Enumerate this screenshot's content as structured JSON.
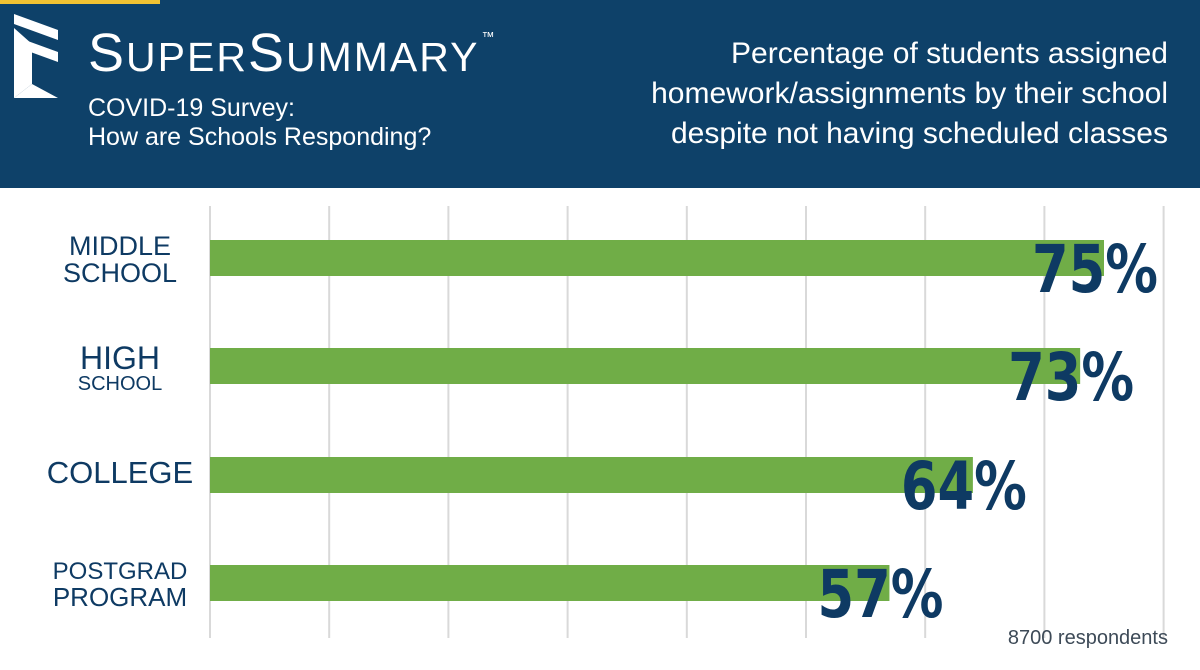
{
  "brand": {
    "name_first_letter": "S",
    "name_first_rest": "UPER",
    "name_second_letter": "S",
    "name_second_rest": "UMMARY",
    "trademark": "™",
    "subtitle_line1": "COVID-19 Survey:",
    "subtitle_line2": "How are Schools Responding?"
  },
  "colors": {
    "header_bg": "#0e4169",
    "bar": "#70ad47",
    "value_text": "#0e3a63",
    "label_text": "#0e3a63",
    "gridline": "#d9d9d9"
  },
  "icons": {
    "logo": "supersummary-chevron-logo-icon"
  },
  "chart_data": {
    "type": "bar",
    "orientation": "horizontal",
    "title": "Percentage of students assigned homework/assignments by their school despite not having scheduled classes",
    "title_lines": [
      "Percentage of students assigned",
      "homework/assignments by their school",
      "despite not having scheduled classes"
    ],
    "categories": [
      {
        "line1": "MIDDLE",
        "line2": "SCHOOL"
      },
      {
        "line1": "HIGH",
        "line2": "SCHOOL"
      },
      {
        "line1": "COLLEGE",
        "line2": ""
      },
      {
        "line1": "POSTGRAD",
        "line2": "PROGRAM"
      }
    ],
    "values": [
      75,
      73,
      64,
      57
    ],
    "value_labels": [
      "75%",
      "73%",
      "64%",
      "57%"
    ],
    "xlim": [
      0,
      80
    ],
    "grid": true,
    "xlabel": "",
    "ylabel": "",
    "footnote": "8700 respondents"
  }
}
